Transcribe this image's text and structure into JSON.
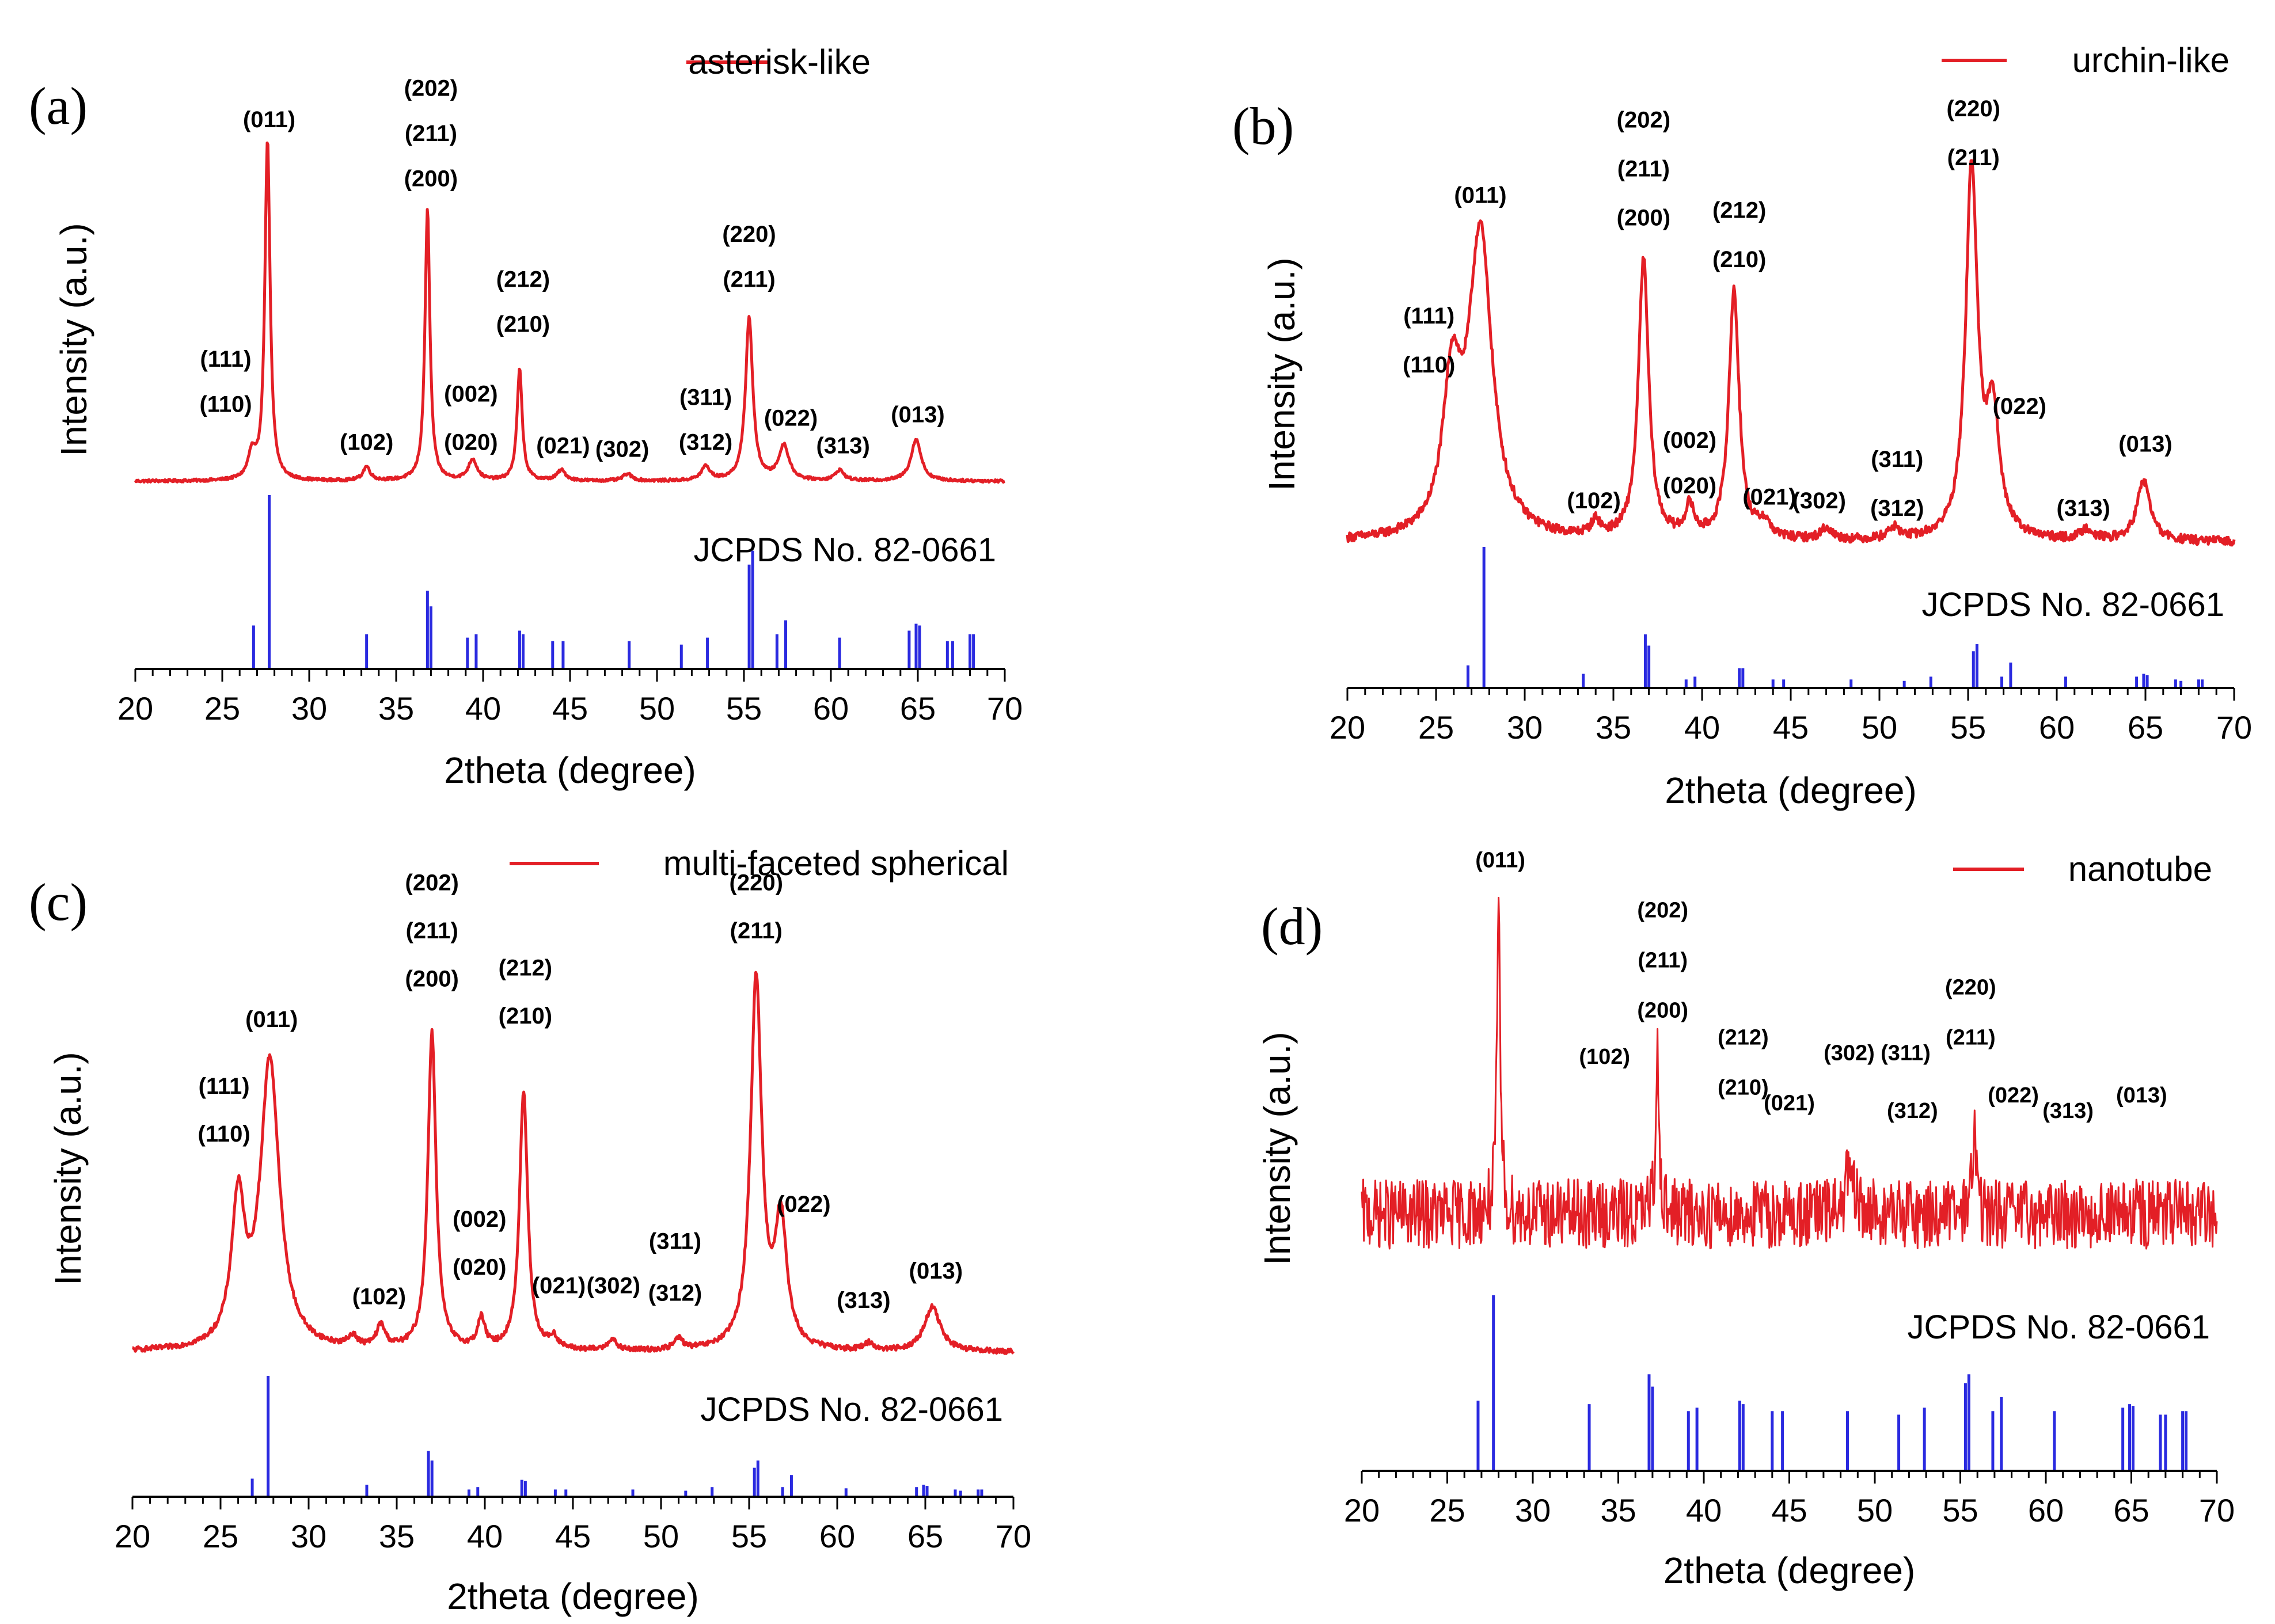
{
  "figure": {
    "description_axis_common": "XRD patterns"
  },
  "chart_data": [
    {
      "type": "line",
      "panel": "(a)",
      "legend": "asterisk-like",
      "xlabel": "2theta (degree)",
      "ylabel": "Intensity (a.u.)",
      "reference_label": "JCPDS No. 82-0661",
      "xlim": [
        20,
        70
      ],
      "xticks": [
        "20",
        "25",
        "30",
        "35",
        "40",
        "45",
        "50",
        "55",
        "60",
        "65",
        "70"
      ],
      "ylim": [
        0,
        100
      ],
      "noise": 0.4,
      "baseline": 2,
      "peaks": [
        {
          "x": 26.7,
          "h": 7,
          "w": 0.25
        },
        {
          "x": 27.6,
          "h": 98,
          "w": 0.18
        },
        {
          "x": 33.3,
          "h": 4,
          "w": 0.25
        },
        {
          "x": 36.8,
          "h": 78,
          "w": 0.17
        },
        {
          "x": 39.4,
          "h": 6,
          "w": 0.3
        },
        {
          "x": 42.1,
          "h": 32,
          "w": 0.18
        },
        {
          "x": 44.5,
          "h": 3,
          "w": 0.3
        },
        {
          "x": 48.3,
          "h": 2,
          "w": 0.3
        },
        {
          "x": 52.8,
          "h": 4,
          "w": 0.3
        },
        {
          "x": 55.3,
          "h": 47,
          "w": 0.25
        },
        {
          "x": 57.3,
          "h": 10,
          "w": 0.35
        },
        {
          "x": 60.5,
          "h": 3,
          "w": 0.3
        },
        {
          "x": 64.9,
          "h": 12,
          "w": 0.35
        }
      ],
      "annotations": [
        {
          "text": "(011)",
          "x": 27.7,
          "y": 104
        },
        {
          "text": "(202)",
          "x": 37.0,
          "y": 113
        },
        {
          "text": "(211)",
          "x": 37.0,
          "y": 100
        },
        {
          "text": "(200)",
          "x": 37.0,
          "y": 87
        },
        {
          "text": "(111)",
          "x": 25.2,
          "y": 35
        },
        {
          "text": "(110)",
          "x": 25.2,
          "y": 22
        },
        {
          "text": "(102)",
          "x": 33.3,
          "y": 11
        },
        {
          "text": "(002)",
          "x": 39.3,
          "y": 25
        },
        {
          "text": "(020)",
          "x": 39.3,
          "y": 11
        },
        {
          "text": "(212)",
          "x": 42.3,
          "y": 58
        },
        {
          "text": "(210)",
          "x": 42.3,
          "y": 45
        },
        {
          "text": "(021)",
          "x": 44.6,
          "y": 10
        },
        {
          "text": "(302)",
          "x": 48.0,
          "y": 9
        },
        {
          "text": "(311)",
          "x": 52.8,
          "y": 24
        },
        {
          "text": "(312)",
          "x": 52.8,
          "y": 11
        },
        {
          "text": "(220)",
          "x": 55.3,
          "y": 71
        },
        {
          "text": "(211)",
          "x": 55.3,
          "y": 58
        },
        {
          "text": "(022)",
          "x": 57.7,
          "y": 18
        },
        {
          "text": "(313)",
          "x": 60.7,
          "y": 10
        },
        {
          "text": "(013)",
          "x": 65.0,
          "y": 19
        }
      ],
      "reference_lines": [
        {
          "x": 26.8,
          "h": 25
        },
        {
          "x": 27.7,
          "h": 100
        },
        {
          "x": 33.3,
          "h": 20
        },
        {
          "x": 36.8,
          "h": 45
        },
        {
          "x": 37.0,
          "h": 36
        },
        {
          "x": 39.1,
          "h": 18
        },
        {
          "x": 39.6,
          "h": 20
        },
        {
          "x": 42.1,
          "h": 22
        },
        {
          "x": 42.3,
          "h": 20
        },
        {
          "x": 44.0,
          "h": 16
        },
        {
          "x": 44.6,
          "h": 16
        },
        {
          "x": 48.4,
          "h": 16
        },
        {
          "x": 51.4,
          "h": 14
        },
        {
          "x": 52.9,
          "h": 18
        },
        {
          "x": 55.3,
          "h": 60
        },
        {
          "x": 55.5,
          "h": 68
        },
        {
          "x": 56.9,
          "h": 20
        },
        {
          "x": 57.4,
          "h": 28
        },
        {
          "x": 60.5,
          "h": 18
        },
        {
          "x": 64.5,
          "h": 22
        },
        {
          "x": 64.9,
          "h": 26
        },
        {
          "x": 65.1,
          "h": 25
        },
        {
          "x": 66.7,
          "h": 16
        },
        {
          "x": 67.0,
          "h": 16
        },
        {
          "x": 68.0,
          "h": 20
        },
        {
          "x": 68.2,
          "h": 20
        }
      ]
    },
    {
      "type": "line",
      "panel": "(b)",
      "legend": "urchin-like",
      "xlabel": "2theta (degree)",
      "ylabel": "Intensity (a.u.)",
      "reference_label": "JCPDS No. 82-0661",
      "xlim": [
        20,
        70
      ],
      "xticks": [
        "20",
        "25",
        "30",
        "35",
        "40",
        "45",
        "50",
        "55",
        "60",
        "65",
        "70"
      ],
      "ylim": [
        0,
        100
      ],
      "noise": 1.2,
      "baseline": 2,
      "peaks": [
        {
          "x": 25.9,
          "h": 38,
          "w": 0.6
        },
        {
          "x": 27.5,
          "h": 80,
          "w": 0.8
        },
        {
          "x": 34.0,
          "h": 4,
          "w": 0.3
        },
        {
          "x": 36.7,
          "h": 74,
          "w": 0.35
        },
        {
          "x": 39.3,
          "h": 8,
          "w": 0.3
        },
        {
          "x": 41.8,
          "h": 66,
          "w": 0.35
        },
        {
          "x": 43.5,
          "h": 4,
          "w": 0.4
        },
        {
          "x": 47.0,
          "h": 3,
          "w": 0.4
        },
        {
          "x": 50.8,
          "h": 3,
          "w": 0.4
        },
        {
          "x": 55.2,
          "h": 98,
          "w": 0.4
        },
        {
          "x": 56.4,
          "h": 32,
          "w": 0.45
        },
        {
          "x": 61.7,
          "h": 3,
          "w": 0.4
        },
        {
          "x": 64.9,
          "h": 16,
          "w": 0.45
        }
      ],
      "annotations": [
        {
          "text": "(011)",
          "x": 27.5,
          "y": 92
        },
        {
          "text": "(202)",
          "x": 36.7,
          "y": 112
        },
        {
          "text": "(211)",
          "x": 36.7,
          "y": 99
        },
        {
          "text": "(200)",
          "x": 36.7,
          "y": 86
        },
        {
          "text": "(111)",
          "x": 24.6,
          "y": 60
        },
        {
          "text": "(110)",
          "x": 24.6,
          "y": 47
        },
        {
          "text": "(102)",
          "x": 33.9,
          "y": 11
        },
        {
          "text": "(002)",
          "x": 39.3,
          "y": 27
        },
        {
          "text": "(020)",
          "x": 39.3,
          "y": 15
        },
        {
          "text": "(212)",
          "x": 42.1,
          "y": 88
        },
        {
          "text": "(210)",
          "x": 42.1,
          "y": 75
        },
        {
          "text": "(021)",
          "x": 43.8,
          "y": 12
        },
        {
          "text": "(302)",
          "x": 46.6,
          "y": 11
        },
        {
          "text": "(311)",
          "x": 51.0,
          "y": 22
        },
        {
          "text": "(312)",
          "x": 51.0,
          "y": 9
        },
        {
          "text": "(220)",
          "x": 55.3,
          "y": 115
        },
        {
          "text": "(211)",
          "x": 55.3,
          "y": 102
        },
        {
          "text": "(022)",
          "x": 57.9,
          "y": 36
        },
        {
          "text": "(313)",
          "x": 61.5,
          "y": 9
        },
        {
          "text": "(013)",
          "x": 65.0,
          "y": 26
        }
      ],
      "reference_lines": [
        {
          "x": 26.8,
          "h": 16
        },
        {
          "x": 27.7,
          "h": 100
        },
        {
          "x": 33.3,
          "h": 10
        },
        {
          "x": 36.8,
          "h": 38
        },
        {
          "x": 37.0,
          "h": 30
        },
        {
          "x": 39.1,
          "h": 6
        },
        {
          "x": 39.6,
          "h": 8
        },
        {
          "x": 42.1,
          "h": 14
        },
        {
          "x": 42.3,
          "h": 14
        },
        {
          "x": 44.0,
          "h": 6
        },
        {
          "x": 44.6,
          "h": 6
        },
        {
          "x": 48.4,
          "h": 6
        },
        {
          "x": 51.4,
          "h": 5
        },
        {
          "x": 52.9,
          "h": 8
        },
        {
          "x": 55.3,
          "h": 26
        },
        {
          "x": 55.5,
          "h": 31
        },
        {
          "x": 56.9,
          "h": 8
        },
        {
          "x": 57.4,
          "h": 18
        },
        {
          "x": 60.5,
          "h": 8
        },
        {
          "x": 64.5,
          "h": 8
        },
        {
          "x": 64.9,
          "h": 10
        },
        {
          "x": 65.1,
          "h": 9
        },
        {
          "x": 66.7,
          "h": 6
        },
        {
          "x": 67.0,
          "h": 5
        },
        {
          "x": 68.0,
          "h": 6
        },
        {
          "x": 68.2,
          "h": 6
        }
      ]
    },
    {
      "type": "line",
      "panel": "(c)",
      "legend": "multi-faceted spherical",
      "xlabel": "2theta (degree)",
      "ylabel": "Intensity (a.u.)",
      "reference_label": "JCPDS No. 82-0661",
      "xlim": [
        20,
        70
      ],
      "xticks": [
        "20",
        "25",
        "30",
        "35",
        "40",
        "45",
        "50",
        "55",
        "60",
        "65",
        "70"
      ],
      "ylim": [
        0,
        100
      ],
      "noise": 0.7,
      "baseline": 2,
      "peaks": [
        {
          "x": 26.0,
          "h": 38,
          "w": 0.45
        },
        {
          "x": 27.8,
          "h": 78,
          "w": 0.65
        },
        {
          "x": 32.5,
          "h": 3,
          "w": 0.3
        },
        {
          "x": 34.1,
          "h": 6,
          "w": 0.3
        },
        {
          "x": 37.0,
          "h": 86,
          "w": 0.28
        },
        {
          "x": 39.8,
          "h": 8,
          "w": 0.25
        },
        {
          "x": 42.2,
          "h": 70,
          "w": 0.28
        },
        {
          "x": 43.9,
          "h": 3,
          "w": 0.3
        },
        {
          "x": 47.2,
          "h": 3,
          "w": 0.3
        },
        {
          "x": 51.0,
          "h": 3,
          "w": 0.3
        },
        {
          "x": 55.4,
          "h": 100,
          "w": 0.38
        },
        {
          "x": 56.8,
          "h": 34,
          "w": 0.4
        },
        {
          "x": 61.8,
          "h": 2,
          "w": 0.3
        },
        {
          "x": 65.4,
          "h": 12,
          "w": 0.55
        }
      ],
      "annotations": [
        {
          "text": "(011)",
          "x": 27.9,
          "y": 90
        },
        {
          "text": "(202)",
          "x": 37.0,
          "y": 127
        },
        {
          "text": "(211)",
          "x": 37.0,
          "y": 114
        },
        {
          "text": "(200)",
          "x": 37.0,
          "y": 101
        },
        {
          "text": "(111)",
          "x": 25.2,
          "y": 72
        },
        {
          "text": "(110)",
          "x": 25.2,
          "y": 59
        },
        {
          "text": "(102)",
          "x": 34.0,
          "y": 15
        },
        {
          "text": "(002)",
          "x": 39.7,
          "y": 36
        },
        {
          "text": "(020)",
          "x": 39.7,
          "y": 23
        },
        {
          "text": "(212)",
          "x": 42.3,
          "y": 104
        },
        {
          "text": "(210)",
          "x": 42.3,
          "y": 91
        },
        {
          "text": "(021)",
          "x": 44.2,
          "y": 18
        },
        {
          "text": "(302)",
          "x": 47.3,
          "y": 18
        },
        {
          "text": "(311)",
          "x": 50.8,
          "y": 30
        },
        {
          "text": "(312)",
          "x": 50.8,
          "y": 16
        },
        {
          "text": "(220)",
          "x": 55.4,
          "y": 127
        },
        {
          "text": "(211)",
          "x": 55.4,
          "y": 114
        },
        {
          "text": "(022)",
          "x": 58.1,
          "y": 40
        },
        {
          "text": "(313)",
          "x": 61.5,
          "y": 14
        },
        {
          "text": "(013)",
          "x": 65.6,
          "y": 22
        }
      ],
      "reference_lines": [
        {
          "x": 26.8,
          "h": 15
        },
        {
          "x": 27.7,
          "h": 100
        },
        {
          "x": 33.3,
          "h": 10
        },
        {
          "x": 36.8,
          "h": 38
        },
        {
          "x": 37.0,
          "h": 30
        },
        {
          "x": 39.1,
          "h": 6
        },
        {
          "x": 39.6,
          "h": 8
        },
        {
          "x": 42.1,
          "h": 14
        },
        {
          "x": 42.3,
          "h": 13
        },
        {
          "x": 44.0,
          "h": 6
        },
        {
          "x": 44.6,
          "h": 6
        },
        {
          "x": 48.4,
          "h": 6
        },
        {
          "x": 51.4,
          "h": 5
        },
        {
          "x": 52.9,
          "h": 8
        },
        {
          "x": 55.3,
          "h": 24
        },
        {
          "x": 55.5,
          "h": 30
        },
        {
          "x": 56.9,
          "h": 8
        },
        {
          "x": 57.4,
          "h": 18
        },
        {
          "x": 60.5,
          "h": 7
        },
        {
          "x": 64.5,
          "h": 8
        },
        {
          "x": 64.9,
          "h": 10
        },
        {
          "x": 65.1,
          "h": 9
        },
        {
          "x": 66.7,
          "h": 6
        },
        {
          "x": 67.0,
          "h": 5
        },
        {
          "x": 68.0,
          "h": 6
        },
        {
          "x": 68.2,
          "h": 6
        }
      ]
    },
    {
      "type": "line",
      "panel": "(d)",
      "legend": "nanotube",
      "xlabel": "2theta (degree)",
      "ylabel": "Intensity (a.u.)",
      "reference_label": "JCPDS No. 82-0661",
      "xlim": [
        20,
        70
      ],
      "xticks": [
        "20",
        "25",
        "30",
        "35",
        "40",
        "45",
        "50",
        "55",
        "60",
        "65",
        "70"
      ],
      "ylim": [
        0,
        100
      ],
      "noise": 9,
      "baseline": 18,
      "peaks": [
        {
          "x": 28.0,
          "h": 75,
          "w": 0.12
        },
        {
          "x": 37.3,
          "h": 42,
          "w": 0.12
        },
        {
          "x": 48.5,
          "h": 10,
          "w": 0.3
        },
        {
          "x": 55.8,
          "h": 22,
          "w": 0.14
        }
      ],
      "annotations": [
        {
          "text": "(011)",
          "x": 28.1,
          "y": 108
        },
        {
          "text": "(202)",
          "x": 37.6,
          "y": 95
        },
        {
          "text": "(211)",
          "x": 37.6,
          "y": 82
        },
        {
          "text": "(200)",
          "x": 37.6,
          "y": 69
        },
        {
          "text": "(102)",
          "x": 34.2,
          "y": 57
        },
        {
          "text": "(212)",
          "x": 42.3,
          "y": 62
        },
        {
          "text": "(210)",
          "x": 42.3,
          "y": 49
        },
        {
          "text": "(021)",
          "x": 45.0,
          "y": 45
        },
        {
          "text": "(302)",
          "x": 48.5,
          "y": 58
        },
        {
          "text": "(311)",
          "x": 51.8,
          "y": 58
        },
        {
          "text": "(312)",
          "x": 52.2,
          "y": 43
        },
        {
          "text": "(220)",
          "x": 55.6,
          "y": 75
        },
        {
          "text": "(211)",
          "x": 55.6,
          "y": 62
        },
        {
          "text": "(022)",
          "x": 58.1,
          "y": 47
        },
        {
          "text": "(313)",
          "x": 61.3,
          "y": 43
        },
        {
          "text": "(013)",
          "x": 65.6,
          "y": 47
        }
      ],
      "reference_lines": [
        {
          "x": 26.8,
          "h": 40
        },
        {
          "x": 27.7,
          "h": 100
        },
        {
          "x": 33.3,
          "h": 38
        },
        {
          "x": 36.8,
          "h": 55
        },
        {
          "x": 37.0,
          "h": 48
        },
        {
          "x": 39.1,
          "h": 34
        },
        {
          "x": 39.6,
          "h": 36
        },
        {
          "x": 42.1,
          "h": 40
        },
        {
          "x": 42.3,
          "h": 38
        },
        {
          "x": 44.0,
          "h": 34
        },
        {
          "x": 44.6,
          "h": 34
        },
        {
          "x": 48.4,
          "h": 34
        },
        {
          "x": 51.4,
          "h": 32
        },
        {
          "x": 52.9,
          "h": 36
        },
        {
          "x": 55.3,
          "h": 50
        },
        {
          "x": 55.5,
          "h": 55
        },
        {
          "x": 56.9,
          "h": 34
        },
        {
          "x": 57.4,
          "h": 42
        },
        {
          "x": 60.5,
          "h": 34
        },
        {
          "x": 64.5,
          "h": 36
        },
        {
          "x": 64.9,
          "h": 38
        },
        {
          "x": 65.1,
          "h": 37
        },
        {
          "x": 66.7,
          "h": 32
        },
        {
          "x": 67.0,
          "h": 32
        },
        {
          "x": 68.0,
          "h": 34
        },
        {
          "x": 68.2,
          "h": 34
        }
      ]
    }
  ],
  "colors": {
    "pattern": "#e31f26",
    "reference": "#2a2ae0",
    "axis": "#000000"
  }
}
